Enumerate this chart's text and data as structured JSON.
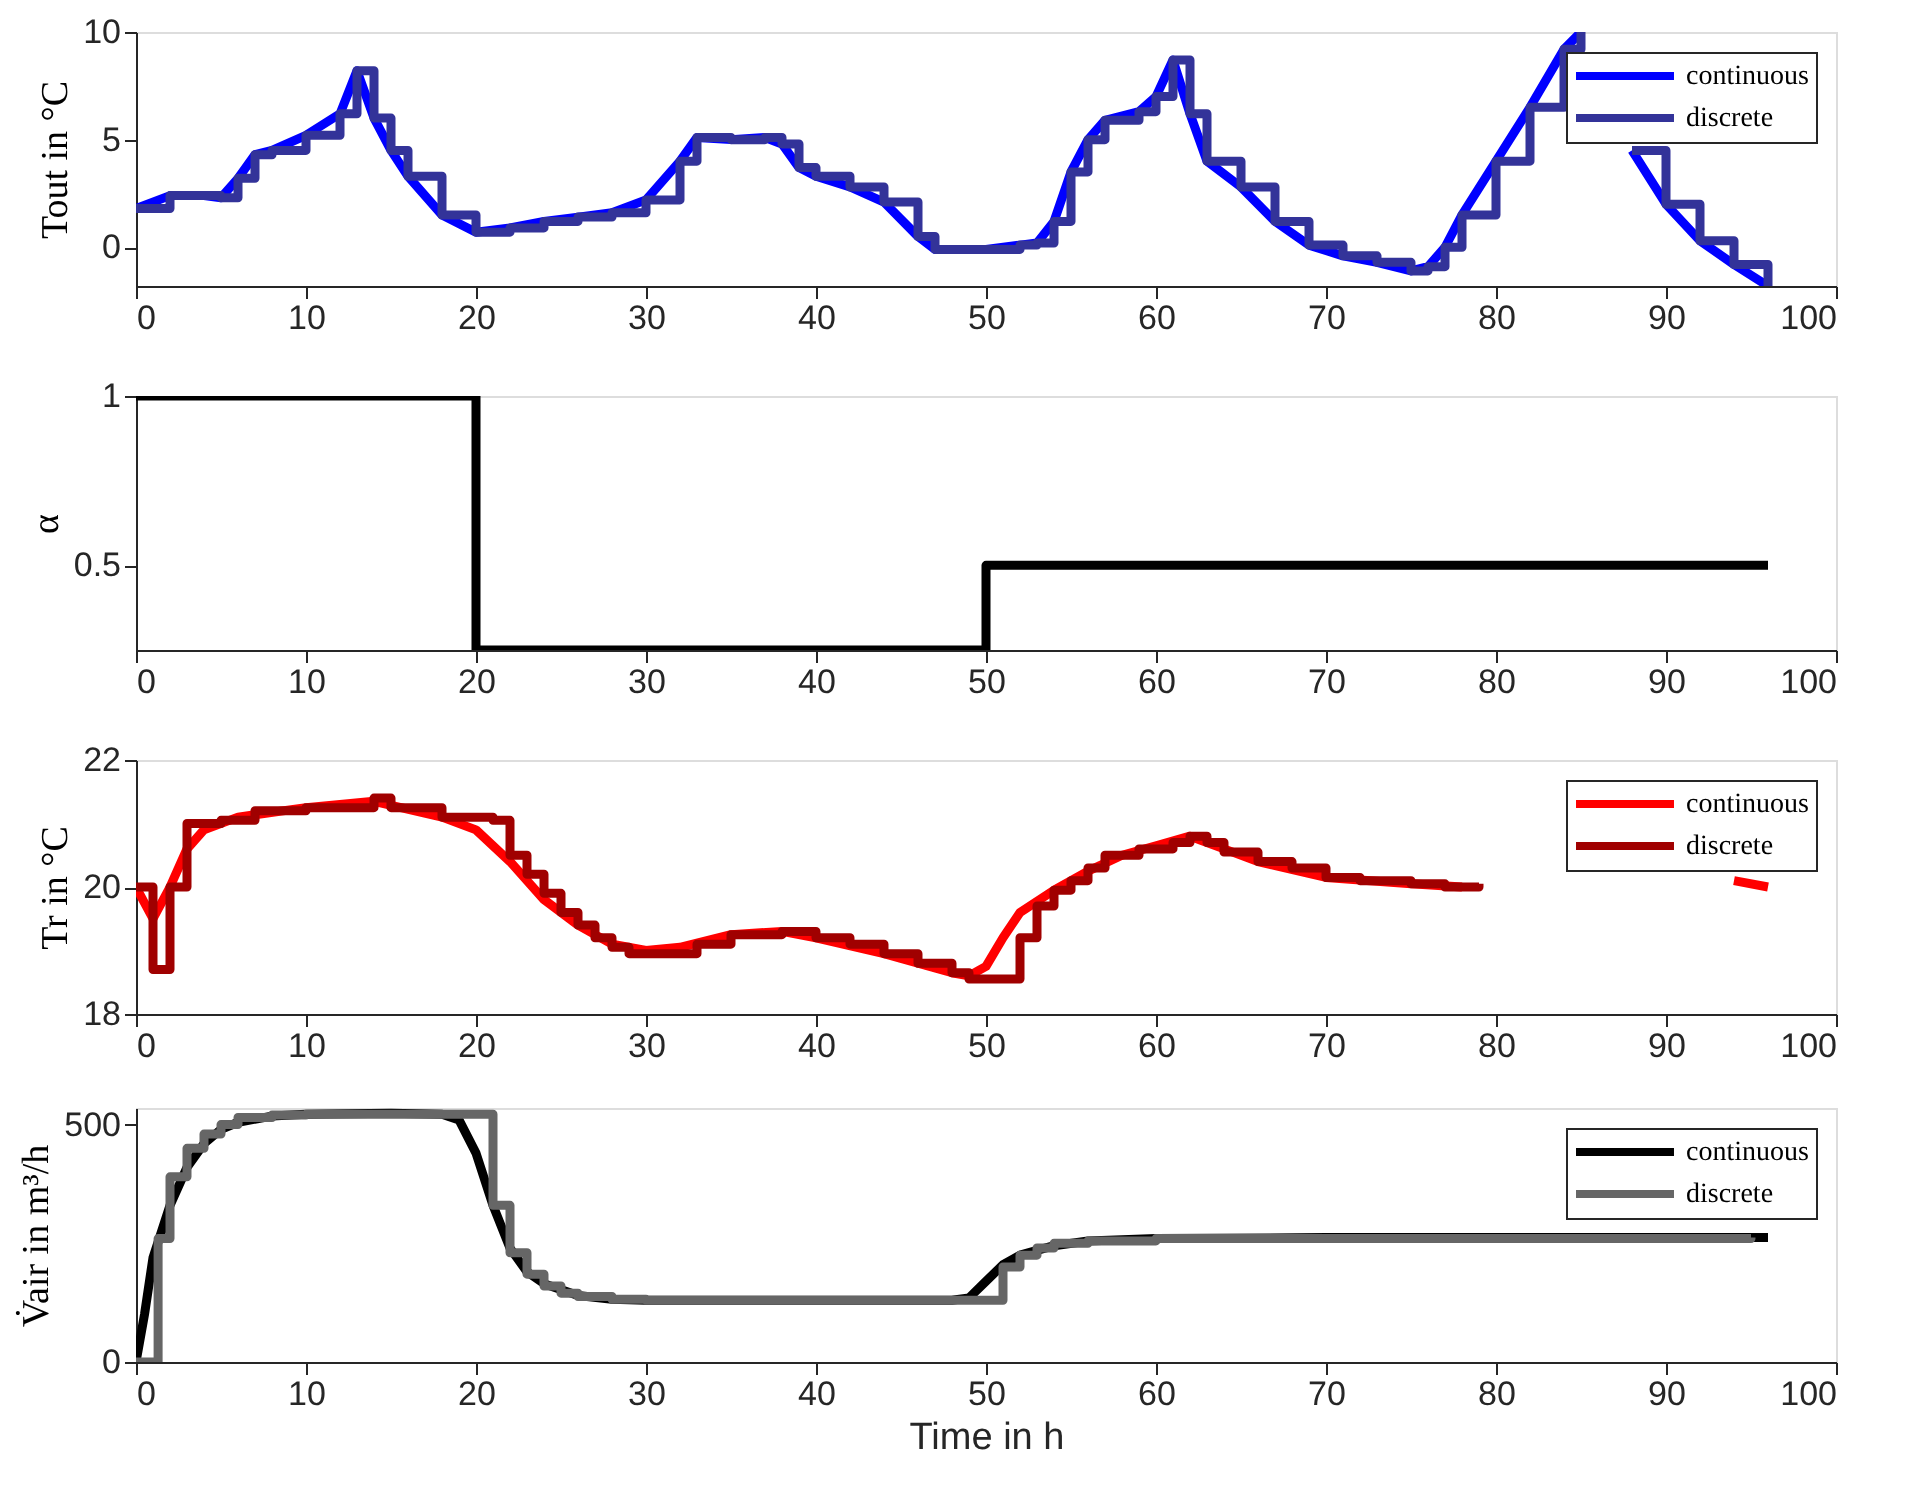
{
  "chart_data": [
    {
      "type": "line",
      "ylabel": "Tout in °C",
      "xlim": [
        0,
        100
      ],
      "xticks": [
        0,
        10,
        20,
        30,
        40,
        50,
        60,
        70,
        80,
        90,
        100
      ],
      "ylim": [
        -1.8,
        10
      ],
      "yticks": [
        0,
        5,
        10
      ],
      "legend": "top right",
      "grid": false,
      "line_style": "solid",
      "marker": "none",
      "x": [
        0,
        2,
        4,
        5,
        6,
        7,
        8,
        10,
        12,
        13,
        14,
        15,
        16,
        18,
        20,
        22,
        24,
        26,
        28,
        30,
        32,
        33,
        35,
        37,
        38,
        39,
        40,
        42,
        44,
        46,
        47,
        50,
        52,
        53,
        54,
        55,
        56,
        57,
        59,
        60,
        61,
        62,
        63,
        65,
        67,
        69,
        71,
        73,
        75,
        76,
        77,
        78,
        80,
        82,
        84,
        85,
        86,
        88,
        90,
        92,
        94,
        96
      ],
      "series": [
        {
          "name": "continuous",
          "color": "#0000ff",
          "values": [
            1.8,
            2.4,
            2.4,
            2.3,
            3.2,
            4.3,
            4.5,
            5.2,
            6.2,
            8.2,
            6,
            4.5,
            3.3,
            1.5,
            0.7,
            0.9,
            1.2,
            1.4,
            1.6,
            2.2,
            4,
            5.1,
            5,
            5.1,
            4.8,
            3.7,
            3.3,
            2.8,
            2.1,
            0.5,
            -0.1,
            -0.1,
            0.1,
            0.2,
            1.2,
            3.5,
            5,
            5.9,
            6.3,
            7,
            8.7,
            6.2,
            4,
            2.8,
            1.2,
            0.1,
            -0.4,
            -0.7,
            -1.1,
            -0.9,
            0,
            1.5,
            4,
            6.5,
            9.2,
            10,
            null,
            4.5,
            2,
            0.3,
            -0.8,
            -1.8
          ]
        },
        {
          "name": "discrete",
          "type": "step",
          "color": "#333399",
          "values": [
            1.8,
            2.4,
            2.4,
            2.3,
            3.2,
            4.3,
            4.5,
            5.2,
            6.2,
            8.2,
            6,
            4.5,
            3.3,
            1.5,
            0.7,
            0.9,
            1.2,
            1.4,
            1.6,
            2.2,
            4,
            5.1,
            5,
            5.1,
            4.8,
            3.7,
            3.3,
            2.8,
            2.1,
            0.5,
            -0.1,
            -0.1,
            0.1,
            0.2,
            1.2,
            3.5,
            5,
            5.9,
            6.3,
            7,
            8.7,
            6.2,
            4,
            2.8,
            1.2,
            0.1,
            -0.4,
            -0.7,
            -1.1,
            -0.9,
            0,
            1.5,
            4,
            6.5,
            9.2,
            10,
            null,
            4.5,
            2,
            0.3,
            -0.8,
            -1.8
          ]
        }
      ]
    },
    {
      "type": "step",
      "ylabel": "α",
      "xlim": [
        0,
        100
      ],
      "xticks": [
        0,
        10,
        20,
        30,
        40,
        50,
        60,
        70,
        80,
        90,
        100
      ],
      "ylim": [
        0.25,
        1
      ],
      "yticks": [
        0.5,
        {
          "value": 1,
          "label": "1"
        }
      ],
      "grid": false,
      "line_style": "solid",
      "marker": "none",
      "x": [
        0,
        20,
        50,
        96
      ],
      "series": [
        {
          "color": "#000000",
          "values": [
            1,
            0.25,
            0.5,
            0.5
          ]
        }
      ]
    },
    {
      "type": "line",
      "ylabel": "Tr in °C",
      "xlim": [
        0,
        100
      ],
      "xticks": [
        0,
        10,
        20,
        30,
        40,
        50,
        60,
        70,
        80,
        90,
        100
      ],
      "ylim": [
        18,
        22
      ],
      "yticks": [
        18,
        20,
        22
      ],
      "legend": "top right",
      "grid": false,
      "line_style": "solid",
      "marker": "none",
      "series": [
        {
          "name": "continuous",
          "color": "#ff0000",
          "x": [
            0,
            1,
            2,
            3,
            4,
            6,
            10,
            14,
            18,
            20,
            22,
            24,
            26,
            28,
            30,
            32,
            35,
            38,
            40,
            44,
            48,
            49,
            50,
            51,
            52,
            54,
            56,
            58,
            60,
            62,
            64,
            66,
            70,
            75,
            78,
            80,
            92,
            94,
            96
          ],
          "values": [
            20,
            19.5,
            20,
            20.6,
            20.9,
            21.1,
            21.25,
            21.35,
            21.1,
            20.9,
            20.4,
            19.8,
            19.4,
            19.1,
            19.0,
            19.05,
            19.25,
            19.3,
            19.2,
            18.95,
            18.65,
            18.6,
            18.75,
            19.2,
            19.6,
            19.95,
            20.25,
            20.5,
            20.65,
            20.8,
            20.6,
            20.4,
            20.15,
            20.05,
            20.0,
            null,
            null,
            20.1,
            20.0
          ]
        },
        {
          "name": "discrete",
          "type": "step",
          "color": "#a00000",
          "x": [
            0,
            1,
            2,
            3,
            5,
            7,
            10,
            14,
            15,
            18,
            21,
            22,
            23,
            24,
            25,
            26,
            27,
            28,
            29,
            31,
            33,
            35,
            38,
            40,
            42,
            44,
            46,
            48,
            49,
            52,
            53,
            54,
            55,
            56,
            57,
            59,
            61,
            62,
            63,
            64,
            66,
            68,
            70,
            72,
            75,
            77,
            79
          ],
          "values": [
            20,
            18.7,
            20,
            21,
            21.05,
            21.2,
            21.25,
            21.4,
            21.25,
            21.1,
            21.05,
            20.5,
            20.2,
            19.9,
            19.6,
            19.4,
            19.2,
            19.05,
            18.95,
            18.95,
            19.1,
            19.25,
            19.3,
            19.2,
            19.1,
            18.95,
            18.8,
            18.65,
            18.55,
            19.2,
            19.7,
            19.95,
            20.1,
            20.3,
            20.5,
            20.6,
            20.7,
            20.8,
            20.7,
            20.55,
            20.4,
            20.3,
            20.15,
            20.1,
            20.05,
            20.0,
            20.05
          ]
        }
      ]
    },
    {
      "type": "line",
      "ylabel": "V̇air in m³/h",
      "xlabel": "Time in h",
      "xlim": [
        0,
        100
      ],
      "xticks": [
        0,
        10,
        20,
        30,
        40,
        50,
        60,
        70,
        80,
        90,
        100
      ],
      "ylim": [
        0,
        535
      ],
      "yticks": [
        0,
        500
      ],
      "legend": "top right",
      "grid": false,
      "line_style": "solid",
      "marker": "none",
      "series": [
        {
          "name": "continuous",
          "color": "#000000",
          "x": [
            0,
            0.5,
            1,
            2,
            3,
            4,
            5,
            6,
            8,
            10,
            15,
            18,
            19,
            20,
            21,
            22,
            23,
            24,
            26,
            28,
            30,
            40,
            48,
            49,
            50,
            51,
            52,
            54,
            56,
            60,
            70,
            80,
            90,
            96
          ],
          "values": [
            0,
            100,
            220,
            330,
            410,
            460,
            490,
            505,
            518,
            522,
            524,
            522,
            510,
            440,
            330,
            240,
            190,
            165,
            140,
            132,
            130,
            130,
            130,
            135,
            170,
            205,
            225,
            245,
            255,
            260,
            262,
            262,
            262,
            262
          ]
        },
        {
          "name": "discrete",
          "type": "step",
          "color": "#666666",
          "x": [
            0,
            1.3,
            2,
            3,
            4,
            5,
            6,
            8,
            10,
            21,
            22,
            23,
            24,
            25,
            26,
            28,
            30,
            51,
            52,
            53,
            54,
            56,
            60,
            95
          ],
          "values": [
            0,
            260,
            390,
            450,
            480,
            500,
            515,
            520,
            522,
            330,
            230,
            185,
            160,
            145,
            138,
            132,
            130,
            200,
            225,
            240,
            250,
            255,
            260,
            262
          ]
        }
      ]
    }
  ]
}
